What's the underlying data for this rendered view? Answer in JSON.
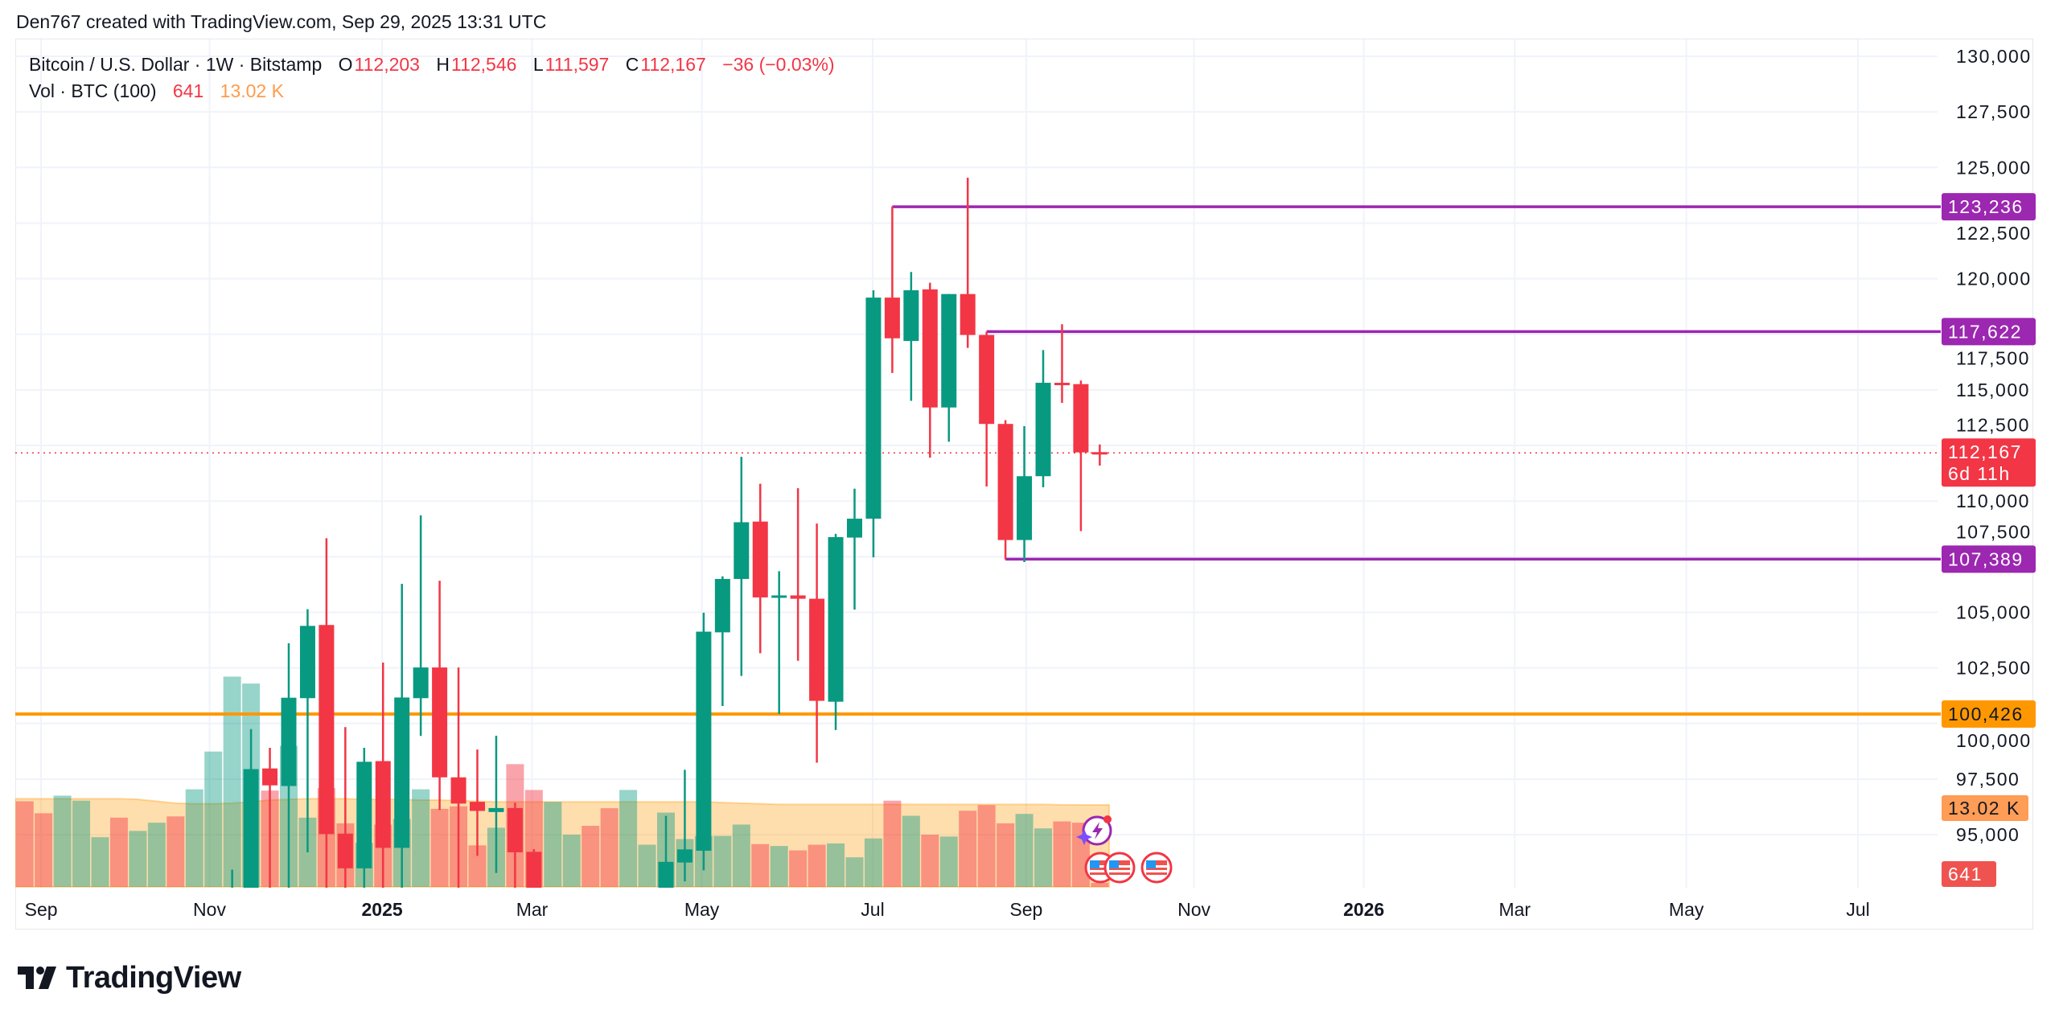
{
  "credit": "Den767 created with TradingView.com, Sep 29, 2025 13:31 UTC",
  "legend": {
    "symbol": "Bitcoin / U.S. Dollar · 1W · Bitstamp",
    "o_label": "O",
    "o": "112,203",
    "h_label": "H",
    "h": "112,546",
    "l_label": "L",
    "l": "111,597",
    "c_label": "C",
    "c": "112,167",
    "change": "−36 (−0.03%)",
    "vol_label": "Vol · BTC (100)",
    "vol": "641",
    "vol_ma": "13.02 K"
  },
  "logo": "TradingView",
  "colors": {
    "up": "#089981",
    "down": "#f23645",
    "purple": "#9c27b0",
    "orange": "#ff9800",
    "grid": "#f0f3fa"
  },
  "chart_data": {
    "type": "candlestick",
    "title": "Bitcoin / U.S. Dollar · 1W · Bitstamp",
    "ylim": [
      92580,
      130000
    ],
    "y_ticks": [
      "130,000",
      "127,500",
      "125,000",
      "122,500",
      "120,000",
      "117,500",
      "115,000",
      "112,500",
      "110,000",
      "107,500",
      "105,000",
      "102,500",
      "100,000",
      "97,500",
      "95,000"
    ],
    "y_tick_values": [
      130000,
      127500,
      125000,
      122500,
      120000,
      117500,
      115000,
      112500,
      110000,
      107500,
      105000,
      102500,
      100000,
      97500,
      95000
    ],
    "x_ticks": [
      {
        "label": "Sep",
        "week": 0.87,
        "bold": false
      },
      {
        "label": "Nov",
        "week": 9.8,
        "bold": false
      },
      {
        "label": "2025",
        "week": 18.95,
        "bold": true
      },
      {
        "label": "Mar",
        "week": 26.9,
        "bold": false
      },
      {
        "label": "May",
        "week": 35.9,
        "bold": false
      },
      {
        "label": "Jul",
        "week": 44.96,
        "bold": false
      },
      {
        "label": "Sep",
        "week": 53.1,
        "bold": false
      },
      {
        "label": "Nov",
        "week": 62.0,
        "bold": false
      },
      {
        "label": "2026",
        "week": 71.0,
        "bold": true
      },
      {
        "label": "Mar",
        "week": 79.0,
        "bold": false
      },
      {
        "label": "May",
        "week": 88.1,
        "bold": false
      },
      {
        "label": "Jul",
        "week": 97.2,
        "bold": false
      }
    ],
    "candles_ohlc": [
      null,
      null,
      null,
      null,
      null,
      null,
      null,
      null,
      null,
      null,
      null,
      [
        80400,
        93430,
        76700,
        89800
      ],
      [
        89800,
        99750,
        87000,
        97950
      ],
      [
        97980,
        98910,
        90800,
        97220
      ],
      [
        97190,
        103610,
        90500,
        101160
      ],
      [
        101140,
        105140,
        94210,
        104390
      ],
      [
        104430,
        108330,
        92200,
        95030
      ],
      [
        95050,
        99840,
        91300,
        93490
      ],
      [
        93490,
        98910,
        91500,
        98280
      ],
      [
        98310,
        102740,
        89300,
        94410
      ],
      [
        94410,
        106280,
        89100,
        101170
      ],
      [
        101140,
        109360,
        99440,
        102520
      ],
      [
        102520,
        106420,
        96110,
        97580
      ],
      [
        97580,
        102520,
        91200,
        96400
      ],
      [
        96480,
        98830,
        94050,
        96070
      ],
      [
        96020,
        99450,
        93280,
        96200
      ],
      [
        96200,
        96440,
        86000,
        94210
      ],
      [
        94230,
        94350,
        78000,
        84000
      ],
      null,
      null,
      null,
      null,
      null,
      null,
      [
        83000,
        95850,
        82000,
        93780
      ],
      [
        93750,
        97920,
        92900,
        94340
      ],
      [
        94280,
        104980,
        93400,
        104130
      ],
      [
        104100,
        106620,
        100790,
        106500
      ],
      [
        106500,
        111990,
        102140,
        109050
      ],
      [
        109080,
        110780,
        103160,
        105670
      ],
      [
        105670,
        106850,
        100430,
        105760
      ],
      [
        105760,
        110580,
        102820,
        105610
      ],
      [
        105610,
        108990,
        98240,
        101020
      ],
      [
        100980,
        108530,
        99710,
        108380
      ],
      [
        108360,
        110560,
        105120,
        109210
      ],
      [
        109210,
        119480,
        107470,
        119150
      ],
      [
        119150,
        123250,
        115760,
        117320
      ],
      [
        117200,
        120300,
        114510,
        119480
      ],
      [
        119520,
        119820,
        111950,
        114210
      ],
      [
        114210,
        119310,
        112670,
        119310
      ],
      [
        119310,
        124540,
        116890,
        117470
      ],
      [
        117470,
        117620,
        110660,
        113470
      ],
      [
        113470,
        113640,
        107380,
        108250
      ],
      [
        108250,
        113370,
        107260,
        111120
      ],
      [
        111120,
        116790,
        110620,
        115320
      ],
      [
        115320,
        117950,
        114420,
        115300
      ],
      [
        115260,
        115420,
        108650,
        112190
      ],
      [
        112203,
        112546,
        111597,
        112167
      ]
    ],
    "volume_k": [
      13.6,
      11.7,
      14.5,
      13.7,
      7.9,
      11.0,
      8.9,
      10.2,
      11.2,
      15.5,
      21.5,
      33.4,
      32.3,
      15.3,
      22.4,
      11.0,
      15.7,
      10.1,
      7.0,
      9.9,
      10.8,
      15.5,
      12.4,
      12.8,
      6.6,
      9.4,
      19.5,
      15.4,
      13.5,
      8.3,
      9.7,
      12.5,
      15.4,
      6.7,
      11.8,
      7.6,
      8.1,
      8.1,
      9.9,
      6.8,
      6.5,
      5.8,
      6.7,
      6.9,
      4.7,
      7.7,
      13.7,
      11.3,
      8.3,
      8.0,
      12.1,
      13.0,
      10.1,
      11.6,
      9.3,
      10.4,
      10.2,
      0.641
    ],
    "volume_up": [
      false,
      false,
      true,
      true,
      true,
      false,
      true,
      true,
      false,
      true,
      true,
      true,
      true,
      false,
      true,
      true,
      false,
      false,
      true,
      false,
      true,
      true,
      false,
      false,
      false,
      true,
      false,
      false,
      true,
      true,
      false,
      false,
      true,
      true,
      true,
      true,
      true,
      true,
      true,
      false,
      true,
      false,
      false,
      true,
      true,
      true,
      false,
      true,
      false,
      true,
      false,
      false,
      false,
      true,
      true,
      false,
      false,
      false
    ],
    "volume_ma_k": [
      14.0,
      14.0,
      14.0,
      14.0,
      14.0,
      14.0,
      13.9,
      13.6,
      13.3,
      13.2,
      13.2,
      13.3,
      13.5,
      13.8,
      13.9,
      14.0,
      14.0,
      14.0,
      13.9,
      13.9,
      13.9,
      13.8,
      13.8,
      13.7,
      13.6,
      13.5,
      13.5,
      13.5,
      13.5,
      13.5,
      13.5,
      13.5,
      13.5,
      13.5,
      13.5,
      13.5,
      13.5,
      13.4,
      13.3,
      13.2,
      13.1,
      13.1,
      13.1,
      13.1,
      13.1,
      13.1,
      13.1,
      13.1,
      13.1,
      13.1,
      13.1,
      13.1,
      13.1,
      13.1,
      13.1,
      13.05,
      13.03,
      13.02
    ],
    "levels": [
      {
        "price": 123236,
        "label": "123,236",
        "color": "#9c27b0",
        "from_week": 46
      },
      {
        "price": 117622,
        "label": "117,622",
        "color": "#9c27b0",
        "from_week": 51
      },
      {
        "price": 107389,
        "label": "107,389",
        "color": "#9c27b0",
        "from_week": 52
      },
      {
        "price": 100426,
        "label": "100,426",
        "color": "#ff9800",
        "from_week": null
      }
    ],
    "last_price": {
      "price": 112167,
      "label": "112,167",
      "countdown": "6d 11h"
    },
    "vol_ma_tag": "13.02 K",
    "vol_tag": "641"
  }
}
